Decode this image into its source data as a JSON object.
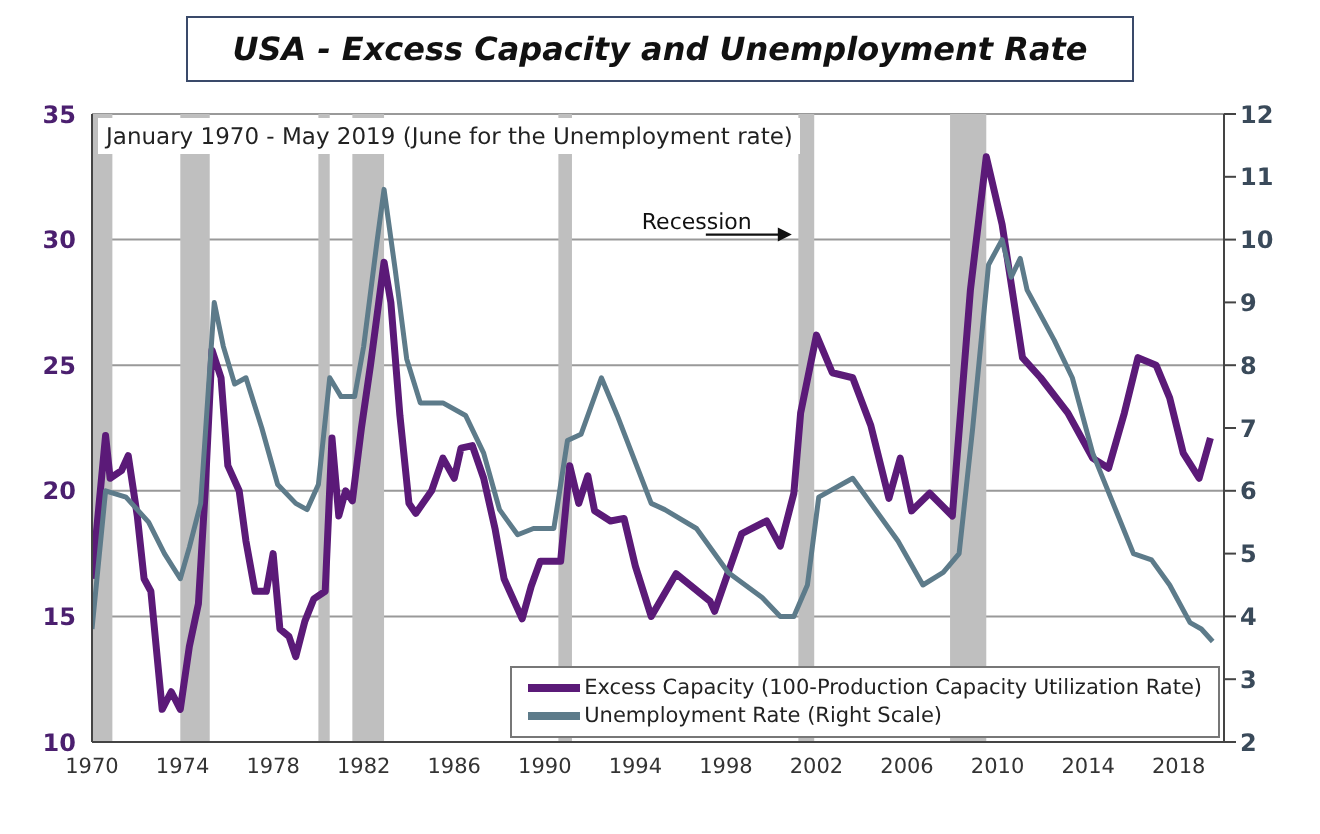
{
  "chart_data": {
    "type": "line",
    "title": "USA - Excess Capacity and Unemployment Rate",
    "subtitle": "January 1970 - May 2019 (June for the Unemployment rate)",
    "xlim": [
      1970,
      2020
    ],
    "xticks": [
      1970,
      1974,
      1978,
      1982,
      1986,
      1990,
      1994,
      1998,
      2002,
      2006,
      2010,
      2014,
      2018
    ],
    "ylim": [
      10,
      35
    ],
    "yticks": [
      10,
      15,
      20,
      25,
      30,
      35
    ],
    "y2lim": [
      2,
      12
    ],
    "y2ticks": [
      2,
      3,
      4,
      5,
      6,
      7,
      8,
      9,
      10,
      11,
      12
    ],
    "grid": "y",
    "legend": "bottom right",
    "marker": "none",
    "line_style": "solid",
    "series": [
      {
        "name": "Excess Capacity (100-Production Capacity Utilization Rate)",
        "color": "#5b1a78",
        "x": [
          1970.0,
          1970.6,
          1970.8,
          1971.3,
          1971.6,
          1972.0,
          1972.3,
          1972.6,
          1973.1,
          1973.5,
          1973.9,
          1974.3,
          1974.7,
          1975.0,
          1975.3,
          1975.7,
          1976.0,
          1976.5,
          1976.8,
          1977.2,
          1977.7,
          1978.0,
          1978.3,
          1978.7,
          1979.0,
          1979.4,
          1979.8,
          1980.3,
          1980.6,
          1980.9,
          1981.2,
          1981.5,
          1981.9,
          1982.3,
          1982.9,
          1983.2,
          1983.6,
          1984.0,
          1984.3,
          1985.0,
          1985.5,
          1986.0,
          1986.3,
          1986.8,
          1987.3,
          1987.8,
          1988.2,
          1988.7,
          1989.0,
          1989.4,
          1989.8,
          1990.3,
          1990.7,
          1991.1,
          1991.5,
          1991.9,
          1992.2,
          1992.9,
          1993.5,
          1994.0,
          1994.7,
          1995.8,
          1997.3,
          1997.5,
          1998.7,
          1999.8,
          2000.4,
          2001.0,
          2001.3,
          2002.0,
          2002.7,
          2003.6,
          2004.4,
          2005.2,
          2005.7,
          2006.2,
          2007.0,
          2008.0,
          2008.8,
          2009.5,
          2010.2,
          2011.1,
          2011.9,
          2013.1,
          2014.2,
          2014.9,
          2015.6,
          2016.2,
          2017.0,
          2017.6,
          2018.2,
          2018.9,
          2019.4
        ],
        "values": [
          16.5,
          22.2,
          20.5,
          20.8,
          21.4,
          19.0,
          16.5,
          16.0,
          11.3,
          12.0,
          11.3,
          13.8,
          15.5,
          20.0,
          25.6,
          24.5,
          21.0,
          20.0,
          18.0,
          16.0,
          16.0,
          17.5,
          14.5,
          14.2,
          13.4,
          14.8,
          15.7,
          16.0,
          22.1,
          19.0,
          20.0,
          19.6,
          22.5,
          25.0,
          29.1,
          27.5,
          23.0,
          19.5,
          19.1,
          20.0,
          21.3,
          20.5,
          21.7,
          21.8,
          20.5,
          18.5,
          16.5,
          15.5,
          14.9,
          16.2,
          17.2,
          17.2,
          17.2,
          21.0,
          19.5,
          20.6,
          19.2,
          18.8,
          18.9,
          17.0,
          15.0,
          16.7,
          15.6,
          15.2,
          18.3,
          18.8,
          17.8,
          19.9,
          23.1,
          26.2,
          24.7,
          24.5,
          22.6,
          19.7,
          21.3,
          19.2,
          19.9,
          19.0,
          28.0,
          33.3,
          30.6,
          25.3,
          24.5,
          23.1,
          21.3,
          20.9,
          23.1,
          25.3,
          25.0,
          23.7,
          21.5,
          20.5,
          22.1
        ]
      },
      {
        "name": "Unemployment Rate (Right Scale)",
        "color": "#5d7b8a",
        "axis": "y2",
        "x": [
          1970.0,
          1970.6,
          1971.5,
          1972.5,
          1973.2,
          1973.9,
          1974.3,
          1974.8,
          1975.4,
          1975.8,
          1976.3,
          1976.8,
          1977.5,
          1978.2,
          1979.0,
          1979.5,
          1980.0,
          1980.5,
          1981.0,
          1981.6,
          1982.0,
          1982.6,
          1982.9,
          1983.4,
          1983.9,
          1984.5,
          1985.5,
          1986.5,
          1987.3,
          1988.0,
          1988.8,
          1989.5,
          1990.4,
          1991.0,
          1991.6,
          1992.5,
          1993.2,
          1994.7,
          1995.3,
          1996.7,
          1998.1,
          1999.6,
          2000.4,
          2001.0,
          2001.6,
          2002.1,
          2003.6,
          2004.4,
          2005.6,
          2006.7,
          2007.6,
          2008.3,
          2008.9,
          2009.6,
          2010.2,
          2010.6,
          2011.0,
          2011.3,
          2012.5,
          2013.3,
          2014.2,
          2015.1,
          2016.0,
          2016.8,
          2017.6,
          2018.5,
          2019.0,
          2019.5
        ],
        "values": [
          3.8,
          6.0,
          5.9,
          5.5,
          5.0,
          4.6,
          5.1,
          5.8,
          9.0,
          8.3,
          7.7,
          7.8,
          7.0,
          6.1,
          5.8,
          5.7,
          6.1,
          7.8,
          7.5,
          7.5,
          8.3,
          10.0,
          10.8,
          9.5,
          8.1,
          7.4,
          7.4,
          7.2,
          6.6,
          5.7,
          5.3,
          5.4,
          5.4,
          6.8,
          6.9,
          7.8,
          7.2,
          5.8,
          5.7,
          5.4,
          4.7,
          4.3,
          4.0,
          4.0,
          4.5,
          5.9,
          6.2,
          5.8,
          5.2,
          4.5,
          4.7,
          5.0,
          7.0,
          9.6,
          10.0,
          9.4,
          9.7,
          9.2,
          8.4,
          7.8,
          6.6,
          5.8,
          5.0,
          4.9,
          4.5,
          3.9,
          3.8,
          3.6
        ]
      }
    ],
    "bands": [
      {
        "axis": "x",
        "from": 1969.9,
        "to": 1970.9,
        "color": "#bfbfbf"
      },
      {
        "axis": "x",
        "from": 1973.9,
        "to": 1975.2,
        "color": "#bfbfbf"
      },
      {
        "axis": "x",
        "from": 1980.0,
        "to": 1980.5,
        "color": "#bfbfbf"
      },
      {
        "axis": "x",
        "from": 1981.5,
        "to": 1982.9,
        "color": "#bfbfbf"
      },
      {
        "axis": "x",
        "from": 1990.6,
        "to": 1991.2,
        "color": "#bfbfbf"
      },
      {
        "axis": "x",
        "from": 2001.2,
        "to": 2001.9,
        "color": "#bfbfbf"
      },
      {
        "axis": "x",
        "from": 2007.9,
        "to": 2009.5,
        "color": "#bfbfbf"
      }
    ],
    "annotations": [
      {
        "text": "Recession",
        "x": 2001.0,
        "y": 30.2
      }
    ]
  }
}
